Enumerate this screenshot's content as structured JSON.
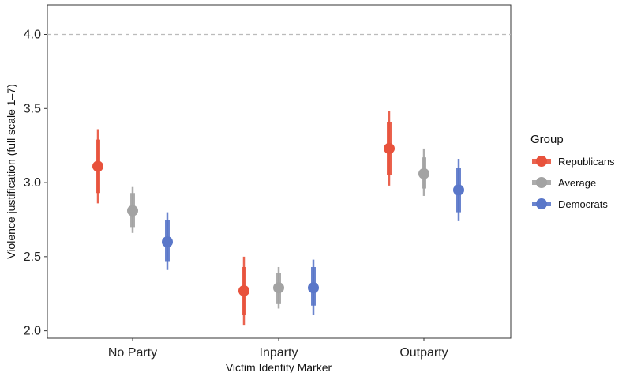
{
  "chart_data": {
    "type": "pointrange",
    "title": "",
    "xlabel": "Victim Identity Marker",
    "ylabel": "Violence justification (full scale 1–7)",
    "categories": [
      "No Party",
      "Inparty",
      "Outparty"
    ],
    "ylim": [
      1.95,
      4.2
    ],
    "yticks": [
      2.0,
      2.5,
      3.0,
      3.5,
      4.0
    ],
    "ytick_labels": [
      "2.0",
      "2.5",
      "3.0",
      "3.5",
      "4.0"
    ],
    "reference_line": 4.0,
    "grid": false,
    "legend": {
      "title": "Group",
      "position": "right"
    },
    "series": [
      {
        "name": "Republicans",
        "color": "#e8523c",
        "values": [
          3.11,
          2.27,
          3.23
        ],
        "inner": [
          [
            2.93,
            3.29
          ],
          [
            2.11,
            2.43
          ],
          [
            3.05,
            3.41
          ]
        ],
        "outer": [
          [
            2.86,
            3.36
          ],
          [
            2.04,
            2.5
          ],
          [
            2.98,
            3.48
          ]
        ]
      },
      {
        "name": "Average",
        "color": "#a3a3a3",
        "values": [
          2.81,
          2.29,
          3.06
        ],
        "inner": [
          [
            2.7,
            2.93
          ],
          [
            2.18,
            2.39
          ],
          [
            2.96,
            3.17
          ]
        ],
        "outer": [
          [
            2.66,
            2.97
          ],
          [
            2.15,
            2.43
          ],
          [
            2.91,
            3.23
          ]
        ]
      },
      {
        "name": "Democrats",
        "color": "#5a77c9",
        "values": [
          2.6,
          2.29,
          2.95
        ],
        "inner": [
          [
            2.47,
            2.75
          ],
          [
            2.17,
            2.43
          ],
          [
            2.8,
            3.1
          ]
        ],
        "outer": [
          [
            2.41,
            2.8
          ],
          [
            2.11,
            2.48
          ],
          [
            2.74,
            3.16
          ]
        ]
      }
    ]
  }
}
